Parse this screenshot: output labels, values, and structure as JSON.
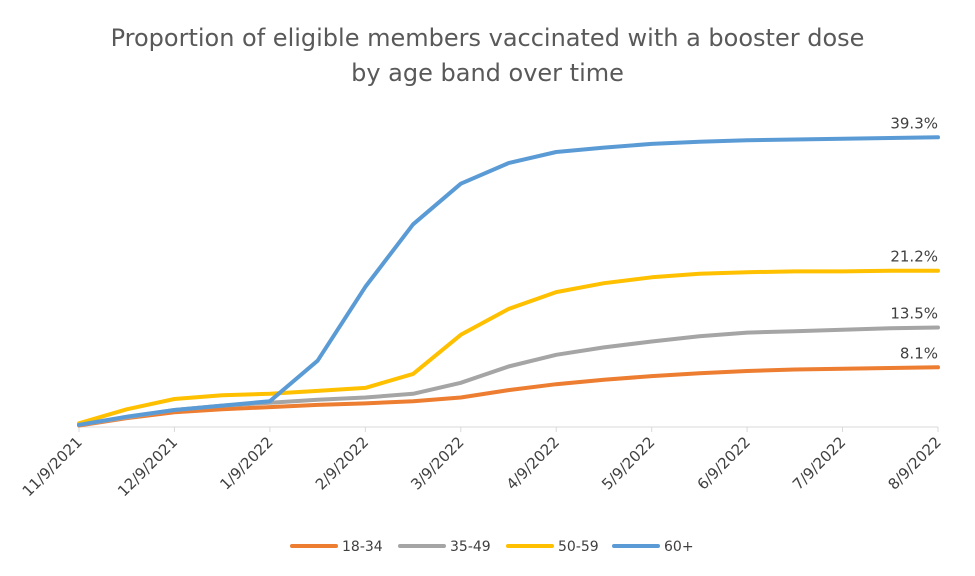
{
  "chart_data": {
    "type": "line",
    "title": [
      "Proportion of eligible members vaccinated with a booster dose",
      "by age band over time"
    ],
    "xlabel": "",
    "ylabel": "",
    "ylim": [
      0,
      43
    ],
    "x_ticks": [
      "11/9/2021",
      "12/9/2021",
      "1/9/2022",
      "2/9/2022",
      "3/9/2022",
      "4/9/2022",
      "5/9/2022",
      "6/9/2022",
      "7/9/2022",
      "8/9/2022"
    ],
    "x": [
      "11/9/2021",
      "11/24/2021",
      "12/9/2021",
      "12/24/2021",
      "1/9/2022",
      "1/24/2022",
      "2/9/2022",
      "2/24/2022",
      "3/9/2022",
      "3/24/2022",
      "4/9/2022",
      "4/24/2022",
      "5/9/2022",
      "5/24/2022",
      "6/9/2022",
      "6/24/2022",
      "7/9/2022",
      "7/24/2022",
      "8/9/2022"
    ],
    "grid": false,
    "legend_position": "bottom",
    "series": [
      {
        "name": "18-34",
        "color": "#ED7D31",
        "values": [
          0.2,
          1.2,
          2.0,
          2.4,
          2.7,
          3.0,
          3.2,
          3.5,
          4.0,
          5.0,
          5.8,
          6.4,
          6.9,
          7.3,
          7.6,
          7.8,
          7.9,
          8.0,
          8.1
        ],
        "end_label": "8.1%"
      },
      {
        "name": "35-49",
        "color": "#A5A5A5",
        "values": [
          0.3,
          1.3,
          2.3,
          2.9,
          3.3,
          3.7,
          4.0,
          4.5,
          6.0,
          8.2,
          9.8,
          10.8,
          11.6,
          12.3,
          12.8,
          13.0,
          13.2,
          13.4,
          13.5
        ],
        "end_label": "13.5%"
      },
      {
        "name": "50-59",
        "color": "#FFC000",
        "values": [
          0.5,
          2.4,
          3.8,
          4.3,
          4.5,
          4.9,
          5.3,
          7.2,
          12.5,
          16.0,
          18.3,
          19.5,
          20.3,
          20.8,
          21.0,
          21.1,
          21.1,
          21.2,
          21.2
        ],
        "end_label": "21.2%"
      },
      {
        "name": "60+",
        "color": "#5B9BD5",
        "values": [
          0.3,
          1.4,
          2.3,
          2.9,
          3.5,
          9.0,
          19.0,
          27.5,
          33.0,
          35.8,
          37.3,
          37.9,
          38.4,
          38.7,
          38.9,
          39.0,
          39.1,
          39.2,
          39.3
        ],
        "end_label": "39.3%"
      }
    ]
  }
}
